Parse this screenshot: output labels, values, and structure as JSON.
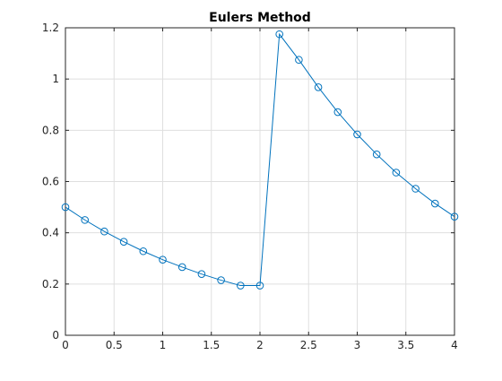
{
  "chart_data": {
    "type": "line",
    "title": "Eulers Method",
    "xlabel": "",
    "ylabel": "",
    "xlim": [
      0,
      4
    ],
    "ylim": [
      0,
      1.2
    ],
    "grid": true,
    "marker": "circle",
    "line_color": "#0072BD",
    "x_ticks": [
      0,
      0.5,
      1,
      1.5,
      2,
      2.5,
      3,
      3.5,
      4
    ],
    "x_tick_labels": [
      "0",
      "0.5",
      "1",
      "1.5",
      "2",
      "2.5",
      "3",
      "3.5",
      "4"
    ],
    "y_ticks": [
      0,
      0.2,
      0.4,
      0.6,
      0.8,
      1,
      1.2
    ],
    "y_tick_labels": [
      "0",
      "0.2",
      "0.4",
      "0.6",
      "0.8",
      "1",
      "1.2"
    ],
    "series": [
      {
        "x": [
          0,
          0.2,
          0.4,
          0.6,
          0.8,
          1.0,
          1.2,
          1.4,
          1.6,
          1.8,
          2.0,
          2.2,
          2.4,
          2.6,
          2.8,
          3.0,
          3.2,
          3.4,
          3.6,
          3.8,
          4.0
        ],
        "y": [
          0.5,
          0.45,
          0.405,
          0.365,
          0.328,
          0.295,
          0.266,
          0.239,
          0.215,
          0.194,
          0.194,
          1.175,
          1.075,
          0.968,
          0.871,
          0.784,
          0.706,
          0.635,
          0.572,
          0.514,
          0.463
        ]
      }
    ]
  }
}
